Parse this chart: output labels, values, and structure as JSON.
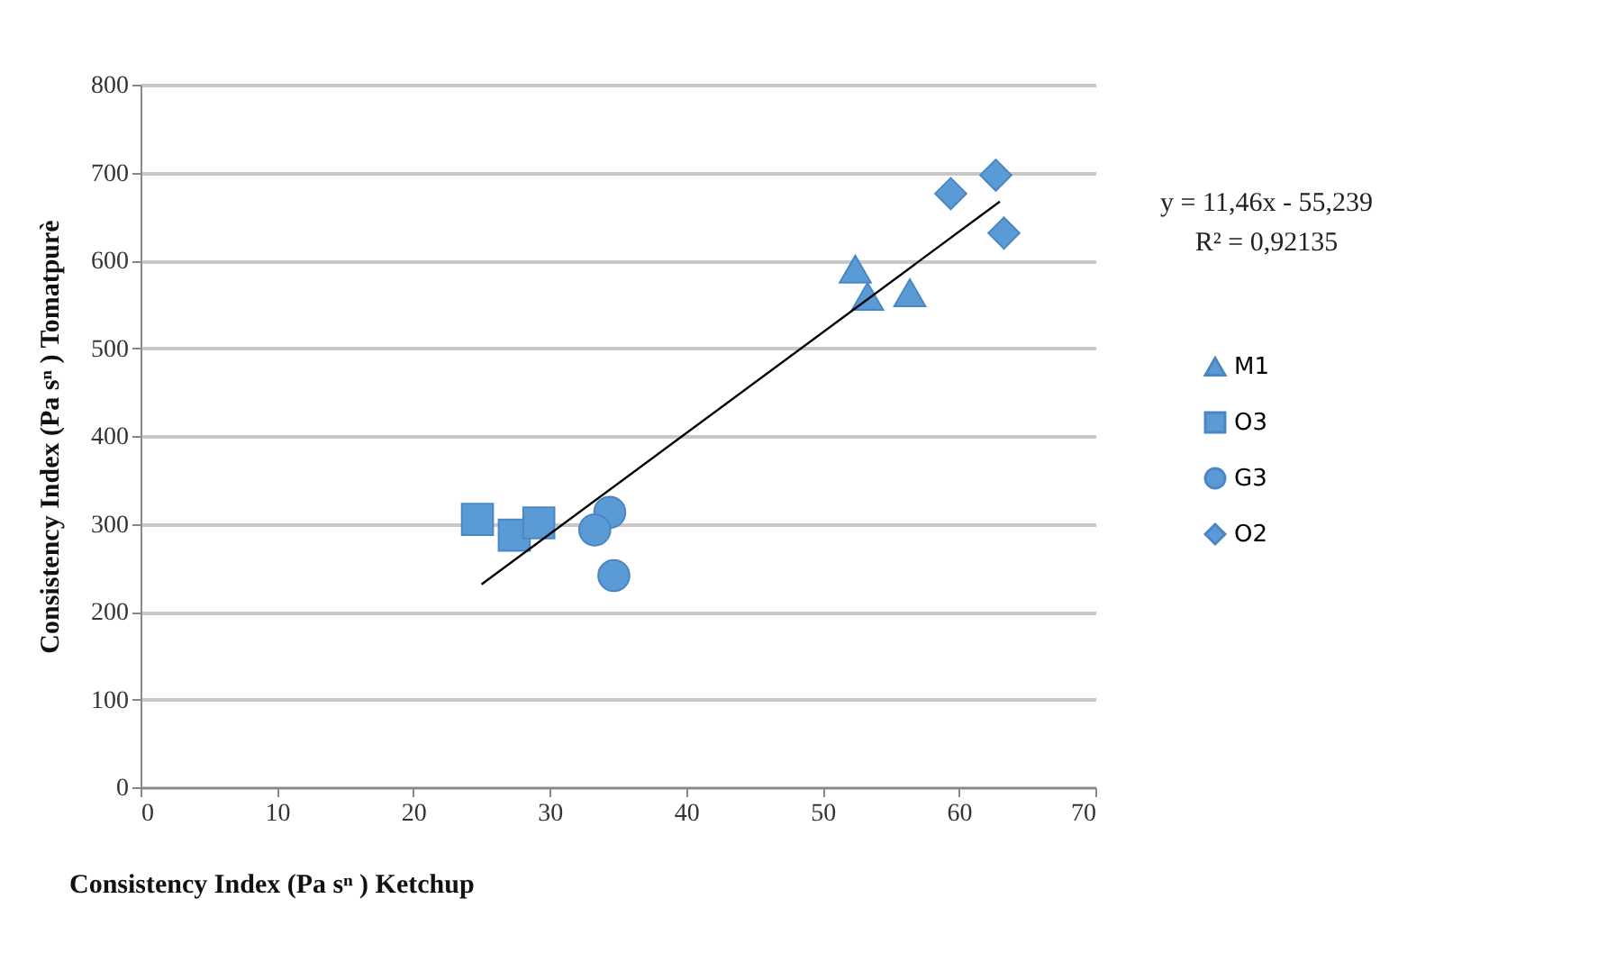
{
  "chart_data": {
    "type": "scatter",
    "xlabel": "Consistency Index (Pa sⁿ ) Ketchup",
    "ylabel": "Consistency Index (Pa sⁿ ) Tomatpurè",
    "series": [
      {
        "name": "M1",
        "color": "#5b9bd5",
        "marker": "triangle",
        "x": [
          52.4,
          53.3,
          56.4
        ],
        "values": [
          590,
          559,
          563
        ]
      },
      {
        "name": "O3",
        "color": "#5b9bd5",
        "marker": "square",
        "x": [
          24.7,
          27.4,
          29.2
        ],
        "values": [
          305,
          287,
          301
        ]
      },
      {
        "name": "G3",
        "color": "#5b9bd5",
        "marker": "circle",
        "x": [
          34.4,
          33.3,
          34.7
        ],
        "values": [
          313,
          293,
          241
        ]
      },
      {
        "name": "O2",
        "color": "#5b9bd5",
        "marker": "diamond",
        "x": [
          59.4,
          62.7,
          63.3
        ],
        "values": [
          676,
          697,
          631
        ]
      },
      {
        "type": "line",
        "color": "#000000",
        "x": [
          25,
          63
        ],
        "values": [
          231,
          667
        ]
      }
    ],
    "annotations": [
      "y = 11,46x - 55,239",
      "R² = 0,92135"
    ],
    "xlim": [
      0,
      70
    ],
    "xticks": [
      0,
      10,
      20,
      30,
      40,
      50,
      60,
      70
    ],
    "ylim": [
      0,
      800
    ],
    "yticks": [
      0,
      100,
      200,
      300,
      400,
      500,
      600,
      700,
      800
    ],
    "grid": "y",
    "legend": "right"
  }
}
